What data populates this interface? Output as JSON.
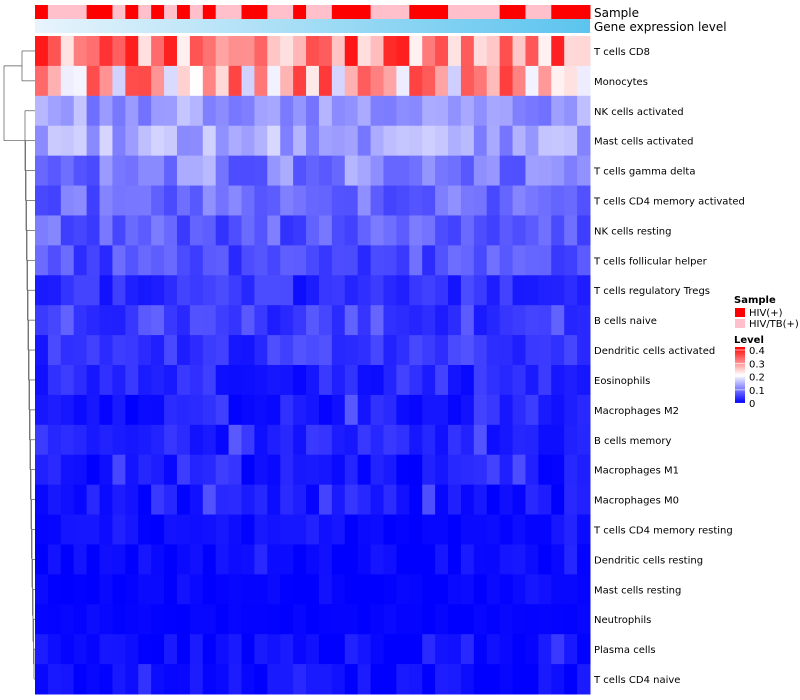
{
  "chart_data": {
    "type": "heatmap",
    "title": "",
    "annotation_tracks": [
      {
        "label": "Sample"
      },
      {
        "label": "Gene expression level"
      }
    ],
    "columns": 43,
    "sample_groups": [
      "T",
      "P",
      "P",
      "P",
      "T",
      "T",
      "P",
      "T",
      "P",
      "T",
      "P",
      "T",
      "P",
      "T",
      "P",
      "P",
      "T",
      "T",
      "P",
      "P",
      "T",
      "P",
      "P",
      "T",
      "T",
      "T",
      "P",
      "P",
      "P",
      "T",
      "T",
      "T",
      "P",
      "P",
      "P",
      "P",
      "T",
      "T",
      "P",
      "P",
      "T",
      "T",
      "T"
    ],
    "colors": {
      "HIV(+)": "#ff0000",
      "HIV/TB(+)": "#ffc0cb",
      "low": "#0000ff",
      "mid": "#ffffff",
      "high": "#ff0000",
      "expression_start": "#e8f4fc",
      "expression_end": "#5bc4ee",
      "dendrogram": "#555555"
    },
    "rows": [
      "T cells CD8",
      "Monocytes",
      "NK cells activated",
      "Mast cells activated",
      "T cells gamma delta",
      "T cells CD4 memory activated",
      "NK cells resting",
      "T cells follicular helper",
      "T cells regulatory  Tregs",
      "B cells naive",
      "Dendritic cells activated",
      "Eosinophils",
      "Macrophages M2",
      "B cells memory",
      "Macrophages M1",
      "Macrophages M0",
      "T cells CD4 memory resting",
      "Dendritic cells resting",
      "Mast cells resting",
      "Neutrophils",
      "Plasma cells",
      "T cells CD4 naive"
    ],
    "value_range": [
      0,
      0.4
    ],
    "row_means": [
      0.3,
      0.26,
      0.12,
      0.13,
      0.1,
      0.08,
      0.07,
      0.06,
      0.035,
      0.05,
      0.04,
      0.03,
      0.02,
      0.025,
      0.015,
      0.015,
      0.008,
      0.008,
      0.003,
      0.002,
      0.008,
      0.008
    ],
    "row_noise": [
      0.09,
      0.1,
      0.035,
      0.04,
      0.045,
      0.035,
      0.035,
      0.03,
      0.025,
      0.03,
      0.025,
      0.025,
      0.02,
      0.02,
      0.02,
      0.02,
      0.012,
      0.012,
      0.006,
      0.004,
      0.015,
      0.015
    ],
    "legend": {
      "sample_title": "Sample",
      "sample_items": [
        "HIV(+)",
        "HIV/TB(+)"
      ],
      "level_title": "Level",
      "level_ticks": [
        "0.4",
        "0.3",
        "0.2",
        "0.1",
        "0"
      ]
    }
  }
}
